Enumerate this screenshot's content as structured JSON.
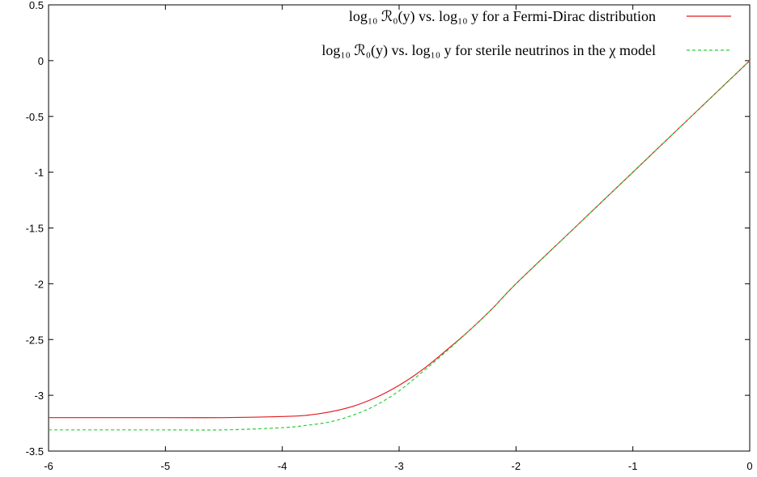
{
  "chart_data": {
    "type": "line",
    "title": "",
    "xlabel": "",
    "ylabel": "",
    "xlim": [
      -6,
      0
    ],
    "ylim": [
      -3.5,
      0.5
    ],
    "grid": false,
    "legend_position": "top-right",
    "x_ticks": [
      "-6",
      "-5",
      "-4",
      "-3",
      "-2",
      "-1",
      "0"
    ],
    "y_ticks": [
      "0.5",
      "0",
      "-0.5",
      "-1",
      "-1.5",
      "-2",
      "-2.5",
      "-3",
      "-3.5"
    ],
    "series": [
      {
        "name": "log₁₀ ℛ₀(y) vs. log₁₀ y for a Fermi-Dirac distribution",
        "color": "#e41a1c",
        "dash": "solid",
        "x": [
          -6,
          -5.5,
          -5,
          -4.5,
          -4,
          -3.8,
          -3.6,
          -3.4,
          -3.2,
          -3,
          -2.8,
          -2.6,
          -2.4,
          -2.2,
          -2,
          -1.5,
          -1,
          -0.5,
          0
        ],
        "y": [
          -3.2,
          -3.2,
          -3.2,
          -3.2,
          -3.19,
          -3.18,
          -3.15,
          -3.1,
          -3.02,
          -2.91,
          -2.77,
          -2.6,
          -2.42,
          -2.22,
          -2.0,
          -1.5,
          -1.0,
          -0.5,
          0
        ]
      },
      {
        "name": "log₁₀ ℛ₀(y) vs. log₁₀ y for sterile neutrinos in the χ model",
        "color": "#2ecc40",
        "dash": "dashed",
        "x": [
          -6,
          -5.5,
          -5,
          -4.5,
          -4,
          -3.8,
          -3.6,
          -3.4,
          -3.2,
          -3,
          -2.8,
          -2.6,
          -2.4,
          -2.2,
          -2,
          -1.5,
          -1,
          -0.5,
          0
        ],
        "y": [
          -3.31,
          -3.31,
          -3.31,
          -3.31,
          -3.29,
          -3.27,
          -3.24,
          -3.18,
          -3.09,
          -2.96,
          -2.79,
          -2.61,
          -2.42,
          -2.22,
          -2.0,
          -1.5,
          -1.0,
          -0.5,
          0
        ]
      }
    ]
  }
}
